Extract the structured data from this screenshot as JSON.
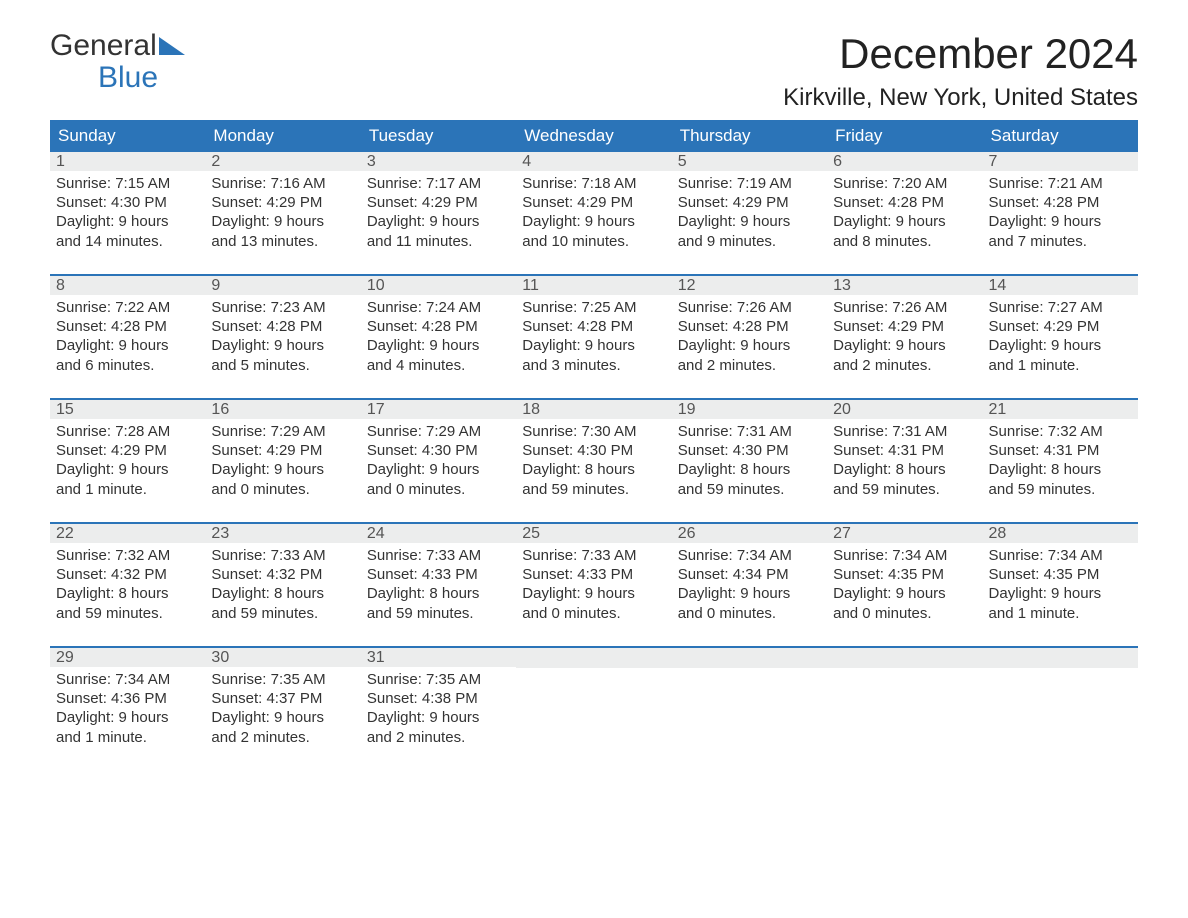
{
  "brand": {
    "word1": "General",
    "word2": "Blue"
  },
  "title": "December 2024",
  "location": "Kirkville, New York, United States",
  "colors": {
    "accent": "#2b74b8",
    "row_bg": "#eceded",
    "text": "#333333",
    "bg": "#ffffff"
  },
  "typography": {
    "title_fontsize": 42,
    "location_fontsize": 24,
    "body_fontsize": 15,
    "dow_fontsize": 17
  },
  "dow": [
    "Sunday",
    "Monday",
    "Tuesday",
    "Wednesday",
    "Thursday",
    "Friday",
    "Saturday"
  ],
  "weeks": [
    [
      {
        "n": "1",
        "sunrise": "Sunrise: 7:15 AM",
        "sunset": "Sunset: 4:30 PM",
        "d1": "Daylight: 9 hours",
        "d2": "and 14 minutes."
      },
      {
        "n": "2",
        "sunrise": "Sunrise: 7:16 AM",
        "sunset": "Sunset: 4:29 PM",
        "d1": "Daylight: 9 hours",
        "d2": "and 13 minutes."
      },
      {
        "n": "3",
        "sunrise": "Sunrise: 7:17 AM",
        "sunset": "Sunset: 4:29 PM",
        "d1": "Daylight: 9 hours",
        "d2": "and 11 minutes."
      },
      {
        "n": "4",
        "sunrise": "Sunrise: 7:18 AM",
        "sunset": "Sunset: 4:29 PM",
        "d1": "Daylight: 9 hours",
        "d2": "and 10 minutes."
      },
      {
        "n": "5",
        "sunrise": "Sunrise: 7:19 AM",
        "sunset": "Sunset: 4:29 PM",
        "d1": "Daylight: 9 hours",
        "d2": "and 9 minutes."
      },
      {
        "n": "6",
        "sunrise": "Sunrise: 7:20 AM",
        "sunset": "Sunset: 4:28 PM",
        "d1": "Daylight: 9 hours",
        "d2": "and 8 minutes."
      },
      {
        "n": "7",
        "sunrise": "Sunrise: 7:21 AM",
        "sunset": "Sunset: 4:28 PM",
        "d1": "Daylight: 9 hours",
        "d2": "and 7 minutes."
      }
    ],
    [
      {
        "n": "8",
        "sunrise": "Sunrise: 7:22 AM",
        "sunset": "Sunset: 4:28 PM",
        "d1": "Daylight: 9 hours",
        "d2": "and 6 minutes."
      },
      {
        "n": "9",
        "sunrise": "Sunrise: 7:23 AM",
        "sunset": "Sunset: 4:28 PM",
        "d1": "Daylight: 9 hours",
        "d2": "and 5 minutes."
      },
      {
        "n": "10",
        "sunrise": "Sunrise: 7:24 AM",
        "sunset": "Sunset: 4:28 PM",
        "d1": "Daylight: 9 hours",
        "d2": "and 4 minutes."
      },
      {
        "n": "11",
        "sunrise": "Sunrise: 7:25 AM",
        "sunset": "Sunset: 4:28 PM",
        "d1": "Daylight: 9 hours",
        "d2": "and 3 minutes."
      },
      {
        "n": "12",
        "sunrise": "Sunrise: 7:26 AM",
        "sunset": "Sunset: 4:28 PM",
        "d1": "Daylight: 9 hours",
        "d2": "and 2 minutes."
      },
      {
        "n": "13",
        "sunrise": "Sunrise: 7:26 AM",
        "sunset": "Sunset: 4:29 PM",
        "d1": "Daylight: 9 hours",
        "d2": "and 2 minutes."
      },
      {
        "n": "14",
        "sunrise": "Sunrise: 7:27 AM",
        "sunset": "Sunset: 4:29 PM",
        "d1": "Daylight: 9 hours",
        "d2": "and 1 minute."
      }
    ],
    [
      {
        "n": "15",
        "sunrise": "Sunrise: 7:28 AM",
        "sunset": "Sunset: 4:29 PM",
        "d1": "Daylight: 9 hours",
        "d2": "and 1 minute."
      },
      {
        "n": "16",
        "sunrise": "Sunrise: 7:29 AM",
        "sunset": "Sunset: 4:29 PM",
        "d1": "Daylight: 9 hours",
        "d2": "and 0 minutes."
      },
      {
        "n": "17",
        "sunrise": "Sunrise: 7:29 AM",
        "sunset": "Sunset: 4:30 PM",
        "d1": "Daylight: 9 hours",
        "d2": "and 0 minutes."
      },
      {
        "n": "18",
        "sunrise": "Sunrise: 7:30 AM",
        "sunset": "Sunset: 4:30 PM",
        "d1": "Daylight: 8 hours",
        "d2": "and 59 minutes."
      },
      {
        "n": "19",
        "sunrise": "Sunrise: 7:31 AM",
        "sunset": "Sunset: 4:30 PM",
        "d1": "Daylight: 8 hours",
        "d2": "and 59 minutes."
      },
      {
        "n": "20",
        "sunrise": "Sunrise: 7:31 AM",
        "sunset": "Sunset: 4:31 PM",
        "d1": "Daylight: 8 hours",
        "d2": "and 59 minutes."
      },
      {
        "n": "21",
        "sunrise": "Sunrise: 7:32 AM",
        "sunset": "Sunset: 4:31 PM",
        "d1": "Daylight: 8 hours",
        "d2": "and 59 minutes."
      }
    ],
    [
      {
        "n": "22",
        "sunrise": "Sunrise: 7:32 AM",
        "sunset": "Sunset: 4:32 PM",
        "d1": "Daylight: 8 hours",
        "d2": "and 59 minutes."
      },
      {
        "n": "23",
        "sunrise": "Sunrise: 7:33 AM",
        "sunset": "Sunset: 4:32 PM",
        "d1": "Daylight: 8 hours",
        "d2": "and 59 minutes."
      },
      {
        "n": "24",
        "sunrise": "Sunrise: 7:33 AM",
        "sunset": "Sunset: 4:33 PM",
        "d1": "Daylight: 8 hours",
        "d2": "and 59 minutes."
      },
      {
        "n": "25",
        "sunrise": "Sunrise: 7:33 AM",
        "sunset": "Sunset: 4:33 PM",
        "d1": "Daylight: 9 hours",
        "d2": "and 0 minutes."
      },
      {
        "n": "26",
        "sunrise": "Sunrise: 7:34 AM",
        "sunset": "Sunset: 4:34 PM",
        "d1": "Daylight: 9 hours",
        "d2": "and 0 minutes."
      },
      {
        "n": "27",
        "sunrise": "Sunrise: 7:34 AM",
        "sunset": "Sunset: 4:35 PM",
        "d1": "Daylight: 9 hours",
        "d2": "and 0 minutes."
      },
      {
        "n": "28",
        "sunrise": "Sunrise: 7:34 AM",
        "sunset": "Sunset: 4:35 PM",
        "d1": "Daylight: 9 hours",
        "d2": "and 1 minute."
      }
    ],
    [
      {
        "n": "29",
        "sunrise": "Sunrise: 7:34 AM",
        "sunset": "Sunset: 4:36 PM",
        "d1": "Daylight: 9 hours",
        "d2": "and 1 minute."
      },
      {
        "n": "30",
        "sunrise": "Sunrise: 7:35 AM",
        "sunset": "Sunset: 4:37 PM",
        "d1": "Daylight: 9 hours",
        "d2": "and 2 minutes."
      },
      {
        "n": "31",
        "sunrise": "Sunrise: 7:35 AM",
        "sunset": "Sunset: 4:38 PM",
        "d1": "Daylight: 9 hours",
        "d2": "and 2 minutes."
      },
      {
        "empty": true
      },
      {
        "empty": true
      },
      {
        "empty": true
      },
      {
        "empty": true
      }
    ]
  ]
}
